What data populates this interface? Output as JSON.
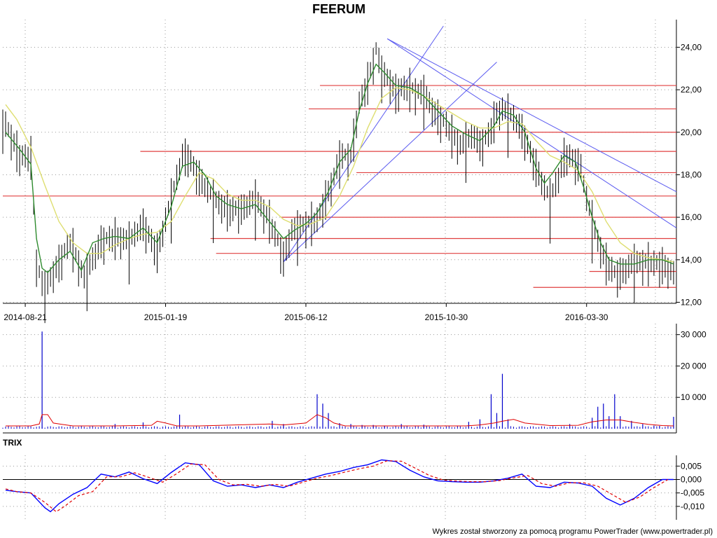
{
  "chart_data": [
    {
      "type": "line",
      "panel": "price",
      "title": "FEERUM",
      "x_tick_labels": [
        "2014-08-21",
        "2015-01-19",
        "2015-06-12",
        "2015-10-30",
        "2016-03-30"
      ],
      "x_tick_index": [
        8,
        58,
        108,
        158,
        208
      ],
      "y_tick_labels": [
        "12,00",
        "14,00",
        "16,00",
        "18,00",
        "20,00",
        "22,00",
        "24,00"
      ],
      "y_ticks": [
        12,
        14,
        16,
        18,
        20,
        22,
        24
      ],
      "ylim": [
        11.95,
        25.3
      ],
      "xlim": [
        0,
        240
      ],
      "series": [
        {
          "role": "price",
          "color": "#000000",
          "x": [
            1,
            6,
            10,
            12,
            14,
            15,
            20,
            24,
            29,
            35,
            40,
            45,
            50,
            55,
            60,
            62,
            64,
            66,
            70,
            75,
            80,
            85,
            90,
            95,
            98,
            100,
            103,
            108,
            112,
            115,
            118,
            120,
            124,
            127,
            130,
            133,
            135,
            138,
            140,
            142,
            145,
            148,
            150,
            154,
            158,
            160,
            163,
            168,
            170,
            173,
            176,
            178,
            182,
            185,
            190,
            193,
            195,
            198,
            200,
            202,
            206,
            208,
            210,
            212,
            215,
            218,
            220,
            225,
            230,
            235,
            239
          ],
          "values": [
            20.5,
            19.0,
            19.0,
            14.0,
            13.0,
            12.8,
            14.0,
            15.0,
            13.3,
            15.0,
            15.2,
            15.0,
            15.8,
            14.5,
            17.0,
            18.0,
            19.0,
            19.0,
            18.0,
            17.0,
            16.5,
            16.5,
            17.0,
            16.0,
            15.0,
            14.2,
            15.5,
            15.8,
            16.0,
            17.0,
            18.0,
            19.0,
            19.0,
            21.5,
            22.5,
            24.0,
            23.0,
            22.5,
            22.0,
            22.2,
            22.2,
            22.0,
            22.0,
            21.0,
            20.5,
            20.0,
            19.5,
            20.0,
            19.5,
            20.0,
            21.0,
            21.2,
            20.8,
            20.2,
            18.5,
            17.5,
            17.0,
            18.0,
            19.0,
            19.0,
            18.5,
            17.0,
            16.0,
            15.0,
            14.0,
            13.5,
            13.5,
            14.0,
            14.0,
            13.9,
            13.5
          ]
        },
        {
          "role": "short-moving-average",
          "color": "#2e8b2e",
          "x": [
            1,
            6,
            10,
            12,
            14,
            16,
            20,
            24,
            28,
            32,
            36,
            40,
            45,
            50,
            55,
            60,
            64,
            68,
            72,
            76,
            80,
            85,
            90,
            95,
            100,
            104,
            108,
            112,
            116,
            120,
            124,
            127,
            130,
            133,
            136,
            140,
            145,
            150,
            155,
            160,
            165,
            170,
            175,
            178,
            182,
            186,
            190,
            193,
            196,
            200,
            204,
            207,
            210,
            213,
            216,
            220,
            225,
            230,
            235,
            239
          ],
          "values": [
            20.0,
            19.2,
            18.5,
            15.0,
            13.6,
            13.4,
            14.0,
            14.4,
            13.5,
            14.8,
            15.0,
            15.1,
            15.0,
            15.5,
            14.8,
            16.5,
            18.4,
            18.6,
            18.0,
            17.0,
            16.6,
            16.4,
            16.6,
            15.8,
            15.0,
            15.4,
            15.7,
            16.2,
            17.2,
            18.6,
            19.2,
            21.0,
            22.3,
            23.2,
            22.8,
            22.2,
            22.1,
            21.7,
            21.0,
            20.3,
            19.9,
            19.6,
            20.3,
            21.0,
            20.8,
            20.0,
            18.3,
            17.6,
            18.1,
            18.9,
            18.6,
            17.4,
            16.0,
            14.8,
            14.0,
            13.8,
            13.8,
            14.0,
            14.0,
            13.8
          ]
        },
        {
          "role": "long-moving-average",
          "color": "#dede70",
          "x": [
            1,
            5,
            10,
            15,
            20,
            25,
            30,
            35,
            40,
            45,
            50,
            55,
            60,
            65,
            70,
            75,
            80,
            85,
            90,
            95,
            100,
            105,
            110,
            115,
            120,
            125,
            130,
            135,
            140,
            145,
            150,
            155,
            160,
            165,
            170,
            175,
            180,
            185,
            190,
            195,
            200,
            205,
            210,
            215,
            220,
            225,
            230,
            235,
            239
          ],
          "values": [
            21.3,
            20.6,
            19.3,
            17.5,
            15.8,
            14.8,
            14.3,
            14.3,
            14.7,
            15.0,
            15.2,
            15.3,
            15.8,
            17.0,
            18.1,
            17.8,
            17.1,
            16.8,
            16.8,
            16.5,
            15.9,
            15.6,
            15.7,
            16.0,
            17.0,
            18.4,
            20.2,
            21.6,
            22.1,
            22.0,
            21.7,
            21.3,
            20.9,
            20.5,
            20.2,
            20.2,
            20.5,
            20.4,
            19.6,
            18.9,
            18.6,
            18.2,
            17.2,
            15.8,
            14.8,
            14.3,
            14.1,
            14.0,
            13.9
          ]
        }
      ],
      "horizontal_levels": [
        {
          "y": 22.2,
          "from": 113,
          "to": 240
        },
        {
          "y": 21.1,
          "from": 109,
          "to": 240
        },
        {
          "y": 20.0,
          "from": 145,
          "to": 240
        },
        {
          "y": 19.1,
          "from": 49,
          "to": 240
        },
        {
          "y": 18.1,
          "from": 126,
          "to": 240
        },
        {
          "y": 17.0,
          "from": 0,
          "to": 240
        },
        {
          "y": 16.0,
          "from": 99,
          "to": 240
        },
        {
          "y": 15.0,
          "from": 74,
          "to": 240
        },
        {
          "y": 14.3,
          "from": 76,
          "to": 240
        },
        {
          "y": 13.45,
          "from": 209,
          "to": 240
        },
        {
          "y": 12.7,
          "from": 189,
          "to": 240
        }
      ],
      "trend_lines": [
        {
          "x": [
            100,
            157
          ],
          "y": [
            13.9,
            25.0
          ]
        },
        {
          "x": [
            100,
            176
          ],
          "y": [
            13.9,
            23.3
          ]
        },
        {
          "x": [
            137,
            240
          ],
          "y": [
            24.4,
            17.2
          ]
        },
        {
          "x": [
            137,
            240
          ],
          "y": [
            24.4,
            15.5
          ]
        }
      ]
    },
    {
      "type": "bar",
      "panel": "volume",
      "y_tick_labels": [
        "10 000",
        "20 000",
        "30 000"
      ],
      "y_ticks": [
        10000,
        20000,
        30000
      ],
      "ylim": [
        0,
        33500
      ],
      "xlim": [
        0,
        240
      ],
      "x": [
        14,
        40,
        50,
        63,
        96,
        100,
        112,
        114,
        116,
        120,
        124,
        128,
        132,
        136,
        142,
        150,
        166,
        170,
        174,
        176,
        178,
        180,
        202,
        210,
        212,
        214,
        216,
        218,
        220,
        224,
        228,
        232,
        234,
        239
      ],
      "values": [
        31000,
        1500,
        2000,
        4500,
        2500,
        1500,
        11000,
        8000,
        5000,
        1800,
        1500,
        1200,
        1200,
        1000,
        1500,
        1300,
        2200,
        3000,
        11000,
        5000,
        17500,
        3000,
        1500,
        3500,
        7000,
        8000,
        4000,
        11000,
        4000,
        2500,
        1500,
        1000,
        900,
        3800
      ],
      "average_x": [
        1,
        10,
        13,
        14,
        16,
        18,
        21,
        25,
        40,
        53,
        55,
        58,
        62,
        70,
        95,
        100,
        108,
        112,
        115,
        118,
        122,
        128,
        140,
        160,
        165,
        170,
        175,
        178,
        182,
        186,
        195,
        205,
        210,
        215,
        220,
        225,
        230,
        235,
        239
      ],
      "average_values": [
        900,
        900,
        1500,
        4500,
        4500,
        1800,
        1400,
        900,
        900,
        1100,
        2400,
        1800,
        900,
        900,
        1500,
        1200,
        1800,
        4500,
        3500,
        1800,
        900,
        900,
        900,
        900,
        900,
        1200,
        1800,
        2400,
        3000,
        1800,
        1000,
        1100,
        2200,
        2800,
        2800,
        2000,
        1400,
        1000,
        900
      ],
      "colors": {
        "bars": "#0000cc",
        "average": "#e00000"
      }
    },
    {
      "type": "line",
      "panel": "indicator",
      "title": "TRIX",
      "y_tick_labels": [
        "0,005",
        "0,000",
        "-0,005",
        "-0,010"
      ],
      "y_ticks": [
        0.005,
        0.0,
        -0.005,
        -0.01
      ],
      "ylim": [
        -0.015,
        0.009
      ],
      "xlim": [
        0,
        240
      ],
      "series": [
        {
          "role": "trix",
          "color": "#0000ff",
          "x": [
            1,
            5,
            10,
            15,
            17,
            20,
            25,
            30,
            35,
            40,
            45,
            50,
            55,
            60,
            65,
            70,
            75,
            80,
            85,
            90,
            95,
            100,
            105,
            110,
            115,
            120,
            125,
            130,
            135,
            140,
            145,
            150,
            155,
            160,
            165,
            170,
            175,
            180,
            185,
            190,
            195,
            200,
            205,
            210,
            215,
            220,
            225,
            230,
            235,
            239
          ],
          "values": [
            -0.004,
            -0.0045,
            -0.005,
            -0.0105,
            -0.012,
            -0.009,
            -0.0055,
            -0.003,
            0.002,
            0.001,
            0.0028,
            0.0003,
            -0.0015,
            0.0026,
            0.0062,
            0.0055,
            -0.0005,
            -0.0025,
            -0.002,
            -0.003,
            -0.002,
            -0.003,
            -0.001,
            0.0005,
            0.002,
            0.003,
            0.0045,
            0.0055,
            0.0073,
            0.0067,
            0.0035,
            0.001,
            -0.0005,
            -0.0008,
            -0.001,
            -0.001,
            -0.0005,
            0.0005,
            0.002,
            -0.0025,
            -0.003,
            -0.001,
            -0.0013,
            -0.0025,
            -0.007,
            -0.0095,
            -0.007,
            -0.003,
            0.0,
            0.0
          ]
        },
        {
          "role": "trix-signal",
          "color": "#e00000",
          "x": [
            1,
            5,
            10,
            15,
            19,
            22,
            27,
            32,
            37,
            42,
            47,
            52,
            57,
            62,
            67,
            72,
            77,
            82,
            87,
            92,
            97,
            102,
            107,
            112,
            117,
            122,
            127,
            132,
            137,
            142,
            147,
            152,
            157,
            162,
            167,
            172,
            177,
            182,
            187,
            192,
            197,
            202,
            207,
            212,
            217,
            222,
            227,
            232,
            237
          ],
          "values": [
            -0.0035,
            -0.0045,
            -0.005,
            -0.0085,
            -0.012,
            -0.01,
            -0.006,
            -0.0045,
            0.001,
            0.001,
            0.0025,
            0.0008,
            -0.001,
            0.0022,
            0.0058,
            0.0055,
            0.0,
            -0.002,
            -0.0018,
            -0.0025,
            -0.0018,
            -0.0025,
            -0.001,
            0.0005,
            0.0015,
            0.0028,
            0.004,
            0.005,
            0.007,
            0.0068,
            0.0042,
            0.0015,
            -0.0002,
            -0.0006,
            -0.0008,
            -0.0008,
            -0.0004,
            0.0006,
            0.0015,
            -0.0015,
            -0.0025,
            -0.0012,
            -0.0012,
            -0.0025,
            -0.0055,
            -0.0085,
            -0.0065,
            -0.003,
            0.0
          ]
        }
      ]
    }
  ],
  "footer": "Wykres został stworzony za pomocą programu PowerTrader (www.powertrader.pl)"
}
